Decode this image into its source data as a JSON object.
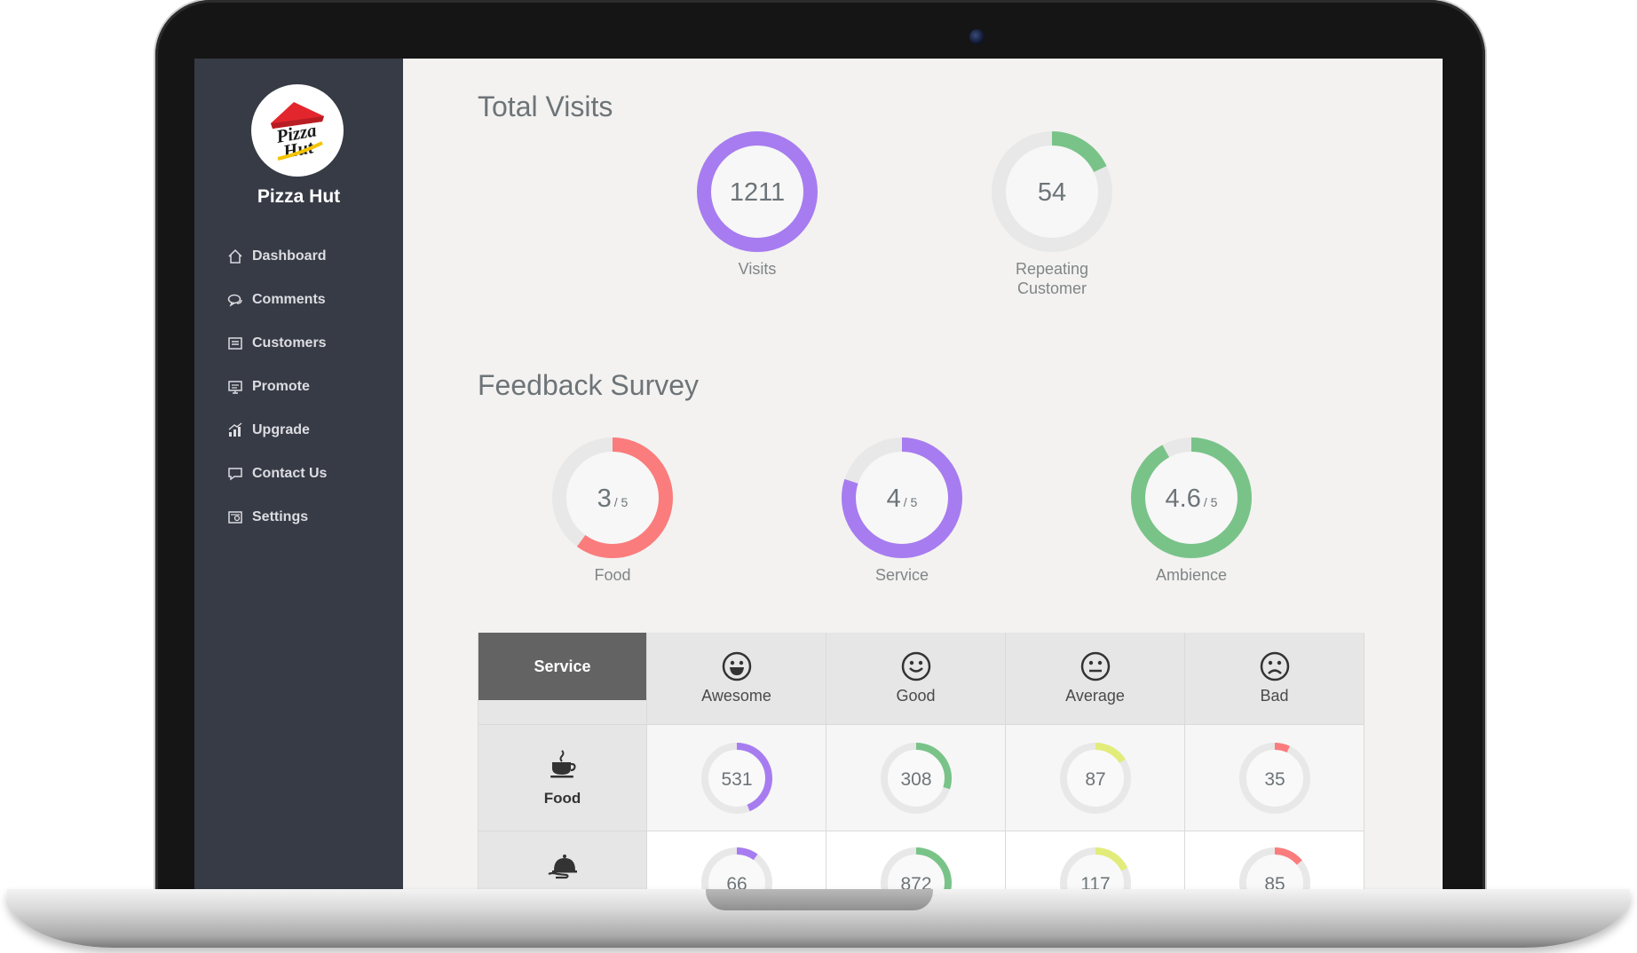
{
  "brand": {
    "name": "Pizza Hut",
    "logo_text_top": "Pizza",
    "logo_text_bottom": "Hut"
  },
  "nav": [
    {
      "label": "Dashboard",
      "icon": "home-icon"
    },
    {
      "label": "Comments",
      "icon": "comments-icon"
    },
    {
      "label": "Customers",
      "icon": "customers-icon"
    },
    {
      "label": "Promote",
      "icon": "promote-icon"
    },
    {
      "label": "Upgrade",
      "icon": "upgrade-icon"
    },
    {
      "label": "Contact Us",
      "icon": "contact-icon"
    },
    {
      "label": "Settings",
      "icon": "settings-icon"
    }
  ],
  "total_visits": {
    "title": "Total Visits",
    "visits": {
      "value": "1211",
      "label": "Visits",
      "fraction": 1.0,
      "color": "#a77cf0"
    },
    "repeating": {
      "value": "54",
      "label_line1": "Repeating",
      "label_line2": "Customer",
      "fraction": 0.18,
      "color": "#79c389"
    }
  },
  "feedback": {
    "title": "Feedback Survey",
    "items": [
      {
        "score": "3",
        "suffix": "/ 5",
        "label": "Food",
        "fraction": 0.6,
        "color": "#fb7c7d"
      },
      {
        "score": "4",
        "suffix": "/ 5",
        "label": "Service",
        "fraction": 0.8,
        "color": "#a77cf0"
      },
      {
        "score": "4.6",
        "suffix": "/ 5",
        "label": "Ambience",
        "fraction": 0.92,
        "color": "#79c389"
      }
    ]
  },
  "table": {
    "corner_label": "Service",
    "columns": [
      {
        "label": "Awesome",
        "icon": "awesome-smiley-icon",
        "color": "#a77cf0"
      },
      {
        "label": "Good",
        "icon": "good-smiley-icon",
        "color": "#79c389"
      },
      {
        "label": "Average",
        "icon": "average-smiley-icon",
        "color": "#e2ec7a"
      },
      {
        "label": "Bad",
        "icon": "bad-smiley-icon",
        "color": "#fb7c7d"
      }
    ],
    "rows": [
      {
        "label": "Food",
        "icon": "coffee-cup-icon",
        "values": [
          {
            "v": "531",
            "f": 0.44
          },
          {
            "v": "308",
            "f": 0.3
          },
          {
            "v": "87",
            "f": 0.16
          },
          {
            "v": "35",
            "f": 0.07
          }
        ]
      },
      {
        "label": "",
        "icon": "food-cloche-icon",
        "values": [
          {
            "v": "66",
            "f": 0.1
          },
          {
            "v": "872",
            "f": 0.43
          },
          {
            "v": "117",
            "f": 0.18
          },
          {
            "v": "85",
            "f": 0.14
          }
        ]
      }
    ]
  }
}
